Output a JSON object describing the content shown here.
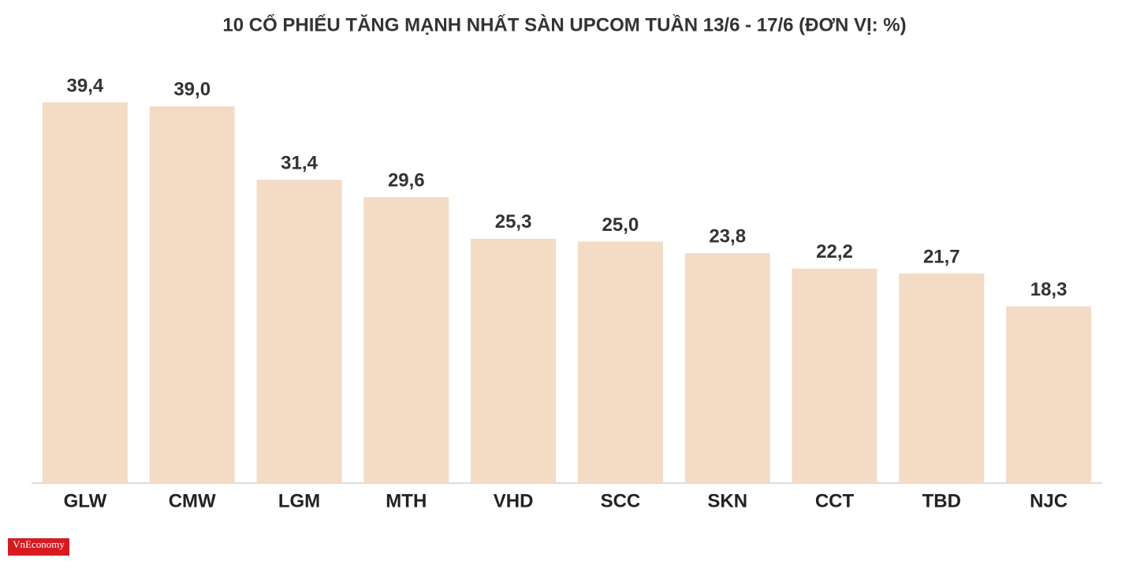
{
  "chart_data": {
    "type": "bar",
    "title": "10 CỔ PHIẾU TĂNG MẠNH NHẤT SÀN UPCOM TUẦN 13/6 - 17/6 (ĐƠN VỊ: %)",
    "categories": [
      "GLW",
      "CMW",
      "LGM",
      "MTH",
      "VHD",
      "SCC",
      "SKN",
      "CCT",
      "TBD",
      "NJC"
    ],
    "values": [
      39.4,
      39.0,
      31.4,
      29.6,
      25.3,
      25.0,
      23.8,
      22.2,
      21.7,
      18.3
    ],
    "value_labels": [
      "39,4",
      "39,0",
      "31,4",
      "29,6",
      "25,3",
      "25,0",
      "23,8",
      "22,2",
      "21,7",
      "18,3"
    ],
    "color": "#f3dbc6"
  },
  "brand": "VnEconomy"
}
